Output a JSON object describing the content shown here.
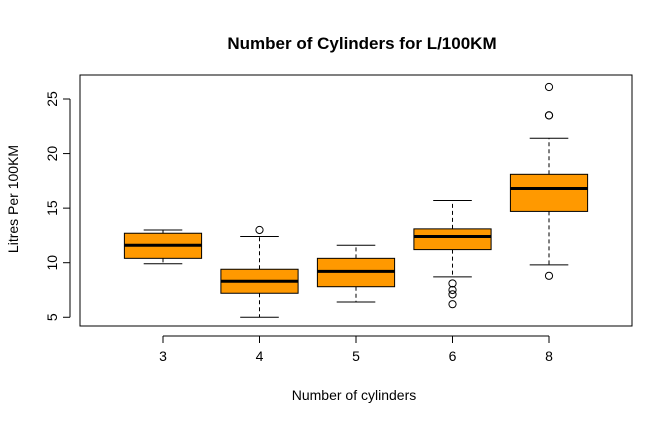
{
  "chart_data": {
    "type": "box",
    "title": "Number of Cylinders for L/100KM",
    "xlabel": "Number of cylinders",
    "ylabel": "Litres Per 100KM",
    "ylim": [
      4.2,
      27.2
    ],
    "yticks": [
      5,
      10,
      15,
      20,
      25
    ],
    "categories": [
      "3",
      "4",
      "5",
      "6",
      "8"
    ],
    "box_color": "#ff9900",
    "boxes": [
      {
        "category": "3",
        "whisker_low": 9.9,
        "q1": 10.4,
        "median": 11.6,
        "q3": 12.7,
        "whisker_high": 13.0,
        "outliers": []
      },
      {
        "category": "4",
        "whisker_low": 5.0,
        "q1": 7.2,
        "median": 8.3,
        "q3": 9.4,
        "whisker_high": 12.4,
        "outliers": [
          13.0
        ]
      },
      {
        "category": "5",
        "whisker_low": 6.4,
        "q1": 7.8,
        "median": 9.2,
        "q3": 10.4,
        "whisker_high": 11.6,
        "outliers": []
      },
      {
        "category": "6",
        "whisker_low": 8.7,
        "q1": 11.2,
        "median": 12.4,
        "q3": 13.1,
        "whisker_high": 15.7,
        "outliers": [
          8.1,
          7.5,
          7.1,
          6.2
        ]
      },
      {
        "category": "8",
        "whisker_low": 9.8,
        "q1": 14.7,
        "median": 16.8,
        "q3": 18.1,
        "whisker_high": 21.4,
        "outliers": [
          8.8,
          23.5,
          23.5,
          26.1
        ]
      }
    ]
  }
}
